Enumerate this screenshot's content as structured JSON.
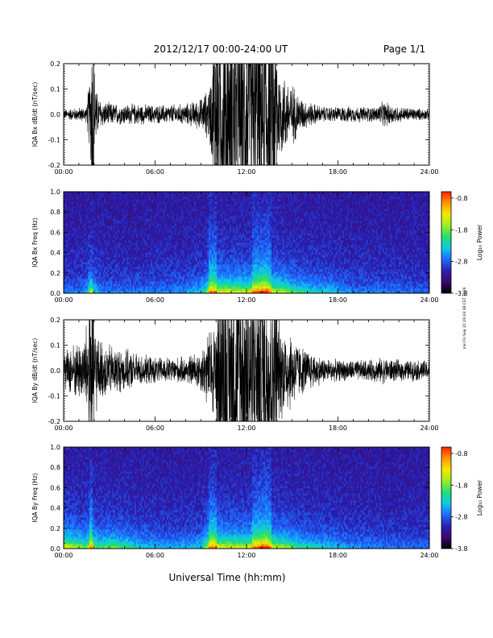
{
  "header": {
    "date_range": "2012/12/17   00:00-24:00 UT",
    "page": "Page 1/1"
  },
  "side_stamp": "mkl Fri Sep 20 19:43:38 CST 2019",
  "x_axis": {
    "label": "Universal Time (hh:mm)",
    "ticks": [
      "00:00",
      "06:00",
      "12:00",
      "18:00",
      "24:00"
    ],
    "tick_hours": [
      0,
      6,
      12,
      18,
      24
    ]
  },
  "colorbar": {
    "label": "Log₁₀ Power",
    "ticks": [
      "-0.8",
      "-1.8",
      "-2.8",
      "-3.8"
    ],
    "tick_values": [
      -0.8,
      -1.8,
      -2.8,
      -3.8
    ],
    "range": [
      -3.8,
      -0.6
    ],
    "colors": [
      "#000000",
      "#3a0a6e",
      "#2a1fb0",
      "#1e6bff",
      "#10c8e8",
      "#20e070",
      "#9cee20",
      "#f8e800",
      "#ff9800",
      "#ff2000"
    ]
  },
  "chart_data": [
    {
      "type": "line",
      "ylabel": "IQA Bx dB/dt (nT/sec)",
      "ylim": [
        -0.2,
        0.2
      ],
      "yticks": [
        "0.2",
        "0.1",
        "0.0",
        "-0.1",
        "-0.2"
      ],
      "ytick_values": [
        0.2,
        0.1,
        0.0,
        -0.1,
        -0.2
      ],
      "xlim": [
        0,
        24
      ],
      "envelope": {
        "x": [
          0,
          1.5,
          1.8,
          2.0,
          2.2,
          2.5,
          3.5,
          5,
          6,
          8,
          9,
          9.5,
          9.8,
          10.5,
          12,
          13,
          14,
          14.5,
          15,
          15.5,
          16,
          17,
          18,
          19,
          20.5,
          21,
          22,
          23,
          24
        ],
        "y": [
          0.02,
          0.03,
          0.2,
          0.2,
          0.08,
          0.05,
          0.04,
          0.04,
          0.035,
          0.04,
          0.06,
          0.1,
          0.2,
          0.2,
          0.2,
          0.2,
          0.2,
          0.15,
          0.12,
          0.07,
          0.05,
          0.03,
          0.03,
          0.03,
          0.03,
          0.05,
          0.03,
          0.025,
          0.02
        ]
      }
    },
    {
      "type": "heatmap",
      "ylabel": "IQA Bx Freq (Hz)",
      "ylim": [
        0.0,
        1.0
      ],
      "yticks": [
        "1.0",
        "0.8",
        "0.6",
        "0.4",
        "0.2",
        "0.0"
      ],
      "ytick_values": [
        1.0,
        0.8,
        0.6,
        0.4,
        0.2,
        0.0
      ],
      "xlim": [
        0,
        24
      ],
      "activity": {
        "x": [
          0,
          1,
          1.5,
          1.8,
          2.0,
          2.5,
          5,
          8,
          9.2,
          9.6,
          10,
          12,
          13.3,
          13.6,
          14.5,
          15.5,
          16.5,
          17.5,
          19,
          21,
          24
        ],
        "level": [
          0.35,
          0.35,
          0.4,
          0.9,
          0.55,
          0.35,
          0.35,
          0.4,
          0.55,
          0.9,
          0.85,
          0.8,
          1.0,
          0.85,
          0.75,
          0.6,
          0.55,
          0.5,
          0.35,
          0.35,
          0.3
        ]
      }
    },
    {
      "type": "line",
      "ylabel": "IQA By dB/dt (nT/sec)",
      "ylim": [
        -0.2,
        0.2
      ],
      "yticks": [
        "0.2",
        "0.1",
        "0.0",
        "-0.1",
        "-0.2"
      ],
      "ytick_values": [
        0.2,
        0.1,
        0.0,
        -0.1,
        -0.2
      ],
      "xlim": [
        0,
        24
      ],
      "envelope": {
        "x": [
          0,
          0.5,
          1.2,
          1.6,
          1.8,
          2.0,
          2.3,
          3,
          4,
          5,
          6,
          8,
          9,
          9.5,
          10,
          12,
          13,
          14,
          15,
          15.5,
          16,
          17,
          18,
          19,
          20,
          21,
          22,
          23,
          24
        ],
        "y": [
          0.07,
          0.1,
          0.12,
          0.2,
          0.2,
          0.2,
          0.12,
          0.1,
          0.08,
          0.06,
          0.05,
          0.05,
          0.08,
          0.15,
          0.2,
          0.2,
          0.2,
          0.2,
          0.15,
          0.1,
          0.08,
          0.05,
          0.04,
          0.04,
          0.04,
          0.05,
          0.04,
          0.04,
          0.04
        ]
      }
    },
    {
      "type": "heatmap",
      "ylabel": "IQA By Freq (Hz)",
      "ylim": [
        0.0,
        1.0
      ],
      "yticks": [
        "1.0",
        "0.8",
        "0.6",
        "0.4",
        "0.2",
        "0.0"
      ],
      "ytick_values": [
        1.0,
        0.8,
        0.6,
        0.4,
        0.2,
        0.0
      ],
      "xlim": [
        0,
        24
      ],
      "activity": {
        "x": [
          0,
          0.5,
          1.5,
          1.8,
          2.2,
          3,
          4,
          4.5,
          5.5,
          7,
          9,
          9.6,
          10,
          12,
          13.3,
          13.6,
          14.5,
          15.5,
          16.5,
          17.5,
          19,
          21,
          24
        ],
        "level": [
          0.85,
          0.8,
          0.7,
          0.9,
          0.65,
          0.7,
          0.65,
          0.55,
          0.5,
          0.45,
          0.5,
          0.9,
          0.85,
          0.8,
          1.0,
          0.85,
          0.75,
          0.6,
          0.55,
          0.5,
          0.4,
          0.35,
          0.3
        ]
      }
    }
  ]
}
